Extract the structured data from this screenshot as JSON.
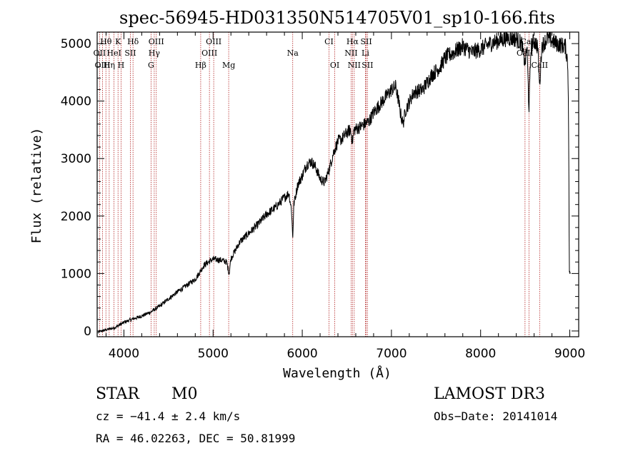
{
  "chart_data": {
    "type": "line",
    "title": "spec-56945-HD031350N514705V01_sp10-166.fits",
    "xlabel": "Wavelength (Å)",
    "ylabel": "Flux (relative)",
    "xlim": [
      3700,
      9100
    ],
    "ylim": [
      -100,
      5200
    ],
    "x_ticks": [
      4000,
      5000,
      6000,
      7000,
      8000,
      9000
    ],
    "x_tick_labels": [
      "4000",
      "5000",
      "6000",
      "7000",
      "8000",
      "9000"
    ],
    "y_ticks": [
      0,
      1000,
      2000,
      3000,
      4000,
      5000
    ],
    "y_tick_labels": [
      "0",
      "1000",
      "2000",
      "3000",
      "4000",
      "5000"
    ],
    "series": [
      {
        "name": "flux",
        "anchors": [
          [
            3710,
            -20
          ],
          [
            3800,
            20
          ],
          [
            3900,
            60
          ],
          [
            4000,
            150
          ],
          [
            4100,
            210
          ],
          [
            4200,
            260
          ],
          [
            4300,
            330
          ],
          [
            4400,
            430
          ],
          [
            4500,
            560
          ],
          [
            4600,
            680
          ],
          [
            4700,
            790
          ],
          [
            4800,
            900
          ],
          [
            4850,
            1020
          ],
          [
            4900,
            1150
          ],
          [
            5000,
            1250
          ],
          [
            5100,
            1230
          ],
          [
            5150,
            1200
          ],
          [
            5180,
            1000
          ],
          [
            5200,
            1260
          ],
          [
            5300,
            1550
          ],
          [
            5400,
            1700
          ],
          [
            5500,
            1850
          ],
          [
            5600,
            2030
          ],
          [
            5700,
            2150
          ],
          [
            5800,
            2320
          ],
          [
            5850,
            2400
          ],
          [
            5880,
            2100
          ],
          [
            5893,
            1600
          ],
          [
            5905,
            2200
          ],
          [
            5950,
            2550
          ],
          [
            6000,
            2700
          ],
          [
            6050,
            2900
          ],
          [
            6100,
            2950
          ],
          [
            6150,
            2850
          ],
          [
            6200,
            2650
          ],
          [
            6250,
            2580
          ],
          [
            6300,
            2800
          ],
          [
            6350,
            3100
          ],
          [
            6400,
            3300
          ],
          [
            6450,
            3350
          ],
          [
            6500,
            3450
          ],
          [
            6540,
            3500
          ],
          [
            6563,
            3300
          ],
          [
            6580,
            3500
          ],
          [
            6650,
            3550
          ],
          [
            6700,
            3600
          ],
          [
            6750,
            3650
          ],
          [
            6800,
            3800
          ],
          [
            6900,
            4000
          ],
          [
            7000,
            4200
          ],
          [
            7050,
            4250
          ],
          [
            7080,
            4000
          ],
          [
            7100,
            3800
          ],
          [
            7130,
            3600
          ],
          [
            7160,
            3850
          ],
          [
            7250,
            4150
          ],
          [
            7350,
            4200
          ],
          [
            7450,
            4450
          ],
          [
            7550,
            4600
          ],
          [
            7600,
            4750
          ],
          [
            7700,
            4850
          ],
          [
            7800,
            4950
          ],
          [
            7900,
            4850
          ],
          [
            8000,
            4900
          ],
          [
            8100,
            5000
          ],
          [
            8200,
            5050
          ],
          [
            8300,
            5100
          ],
          [
            8400,
            5080
          ],
          [
            8460,
            5000
          ],
          [
            8498,
            4650
          ],
          [
            8520,
            4950
          ],
          [
            8542,
            3850
          ],
          [
            8565,
            4950
          ],
          [
            8600,
            5050
          ],
          [
            8640,
            4950
          ],
          [
            8662,
            4250
          ],
          [
            8685,
            4950
          ],
          [
            8750,
            5100
          ],
          [
            8850,
            5000
          ],
          [
            8950,
            4950
          ],
          [
            8975,
            4700
          ],
          [
            8985,
            4100
          ],
          [
            8995,
            1050
          ],
          [
            9005,
            1000
          ]
        ]
      }
    ],
    "spectral_lines": [
      {
        "label": "Hθ",
        "x": 3798,
        "row": 0
      },
      {
        "label": "K",
        "x": 3934,
        "row": 0
      },
      {
        "label": "Hδ",
        "x": 4102,
        "row": 0
      },
      {
        "label": "OIII",
        "x": 4363,
        "row": 0
      },
      {
        "label": "OIII",
        "x": 5007,
        "row": 0
      },
      {
        "label": "CI",
        "x": 6300,
        "row": 0
      },
      {
        "label": "Hα",
        "x": 6563,
        "row": 0
      },
      {
        "label": "SII",
        "x": 6717,
        "row": 0
      },
      {
        "label": "CaII",
        "x": 8542,
        "row": 0
      },
      {
        "label": "OII",
        "x": 3727,
        "row": 1
      },
      {
        "label": "HeI",
        "x": 3889,
        "row": 1
      },
      {
        "label": "SII",
        "x": 4072,
        "row": 1
      },
      {
        "label": "Hγ",
        "x": 4340,
        "row": 1
      },
      {
        "label": "OIII",
        "x": 4959,
        "row": 1
      },
      {
        "label": "Na",
        "x": 5893,
        "row": 1
      },
      {
        "label": "NII",
        "x": 6548,
        "row": 1
      },
      {
        "label": "Li",
        "x": 6708,
        "row": 1
      },
      {
        "label": "CaII",
        "x": 8498,
        "row": 1
      },
      {
        "label": "OIII",
        "x": 3760,
        "row": 2
      },
      {
        "label": "Hη",
        "x": 3835,
        "row": 2
      },
      {
        "label": "H",
        "x": 3968,
        "row": 2
      },
      {
        "label": "G",
        "x": 4304,
        "row": 2
      },
      {
        "label": "Hβ",
        "x": 4861,
        "row": 2
      },
      {
        "label": "Mg",
        "x": 5175,
        "row": 2
      },
      {
        "label": "OI",
        "x": 6364,
        "row": 2
      },
      {
        "label": "NII",
        "x": 6583,
        "row": 2
      },
      {
        "label": "SII",
        "x": 6731,
        "row": 2
      },
      {
        "label": "CaII",
        "x": 8662,
        "row": 2
      }
    ]
  },
  "info": {
    "object_class": "STAR",
    "subclass": "M0",
    "survey": "LAMOST DR3",
    "redshift": "cz = −41.4 ± 2.4 km/s",
    "obs_date": "Obs−Date: 20141014",
    "coords": "RA =  46.02263, DEC =  50.81999"
  },
  "colors": {
    "line": "#000000",
    "marker_lines": "#b22222",
    "axes": "#000000",
    "background": "#ffffff"
  }
}
